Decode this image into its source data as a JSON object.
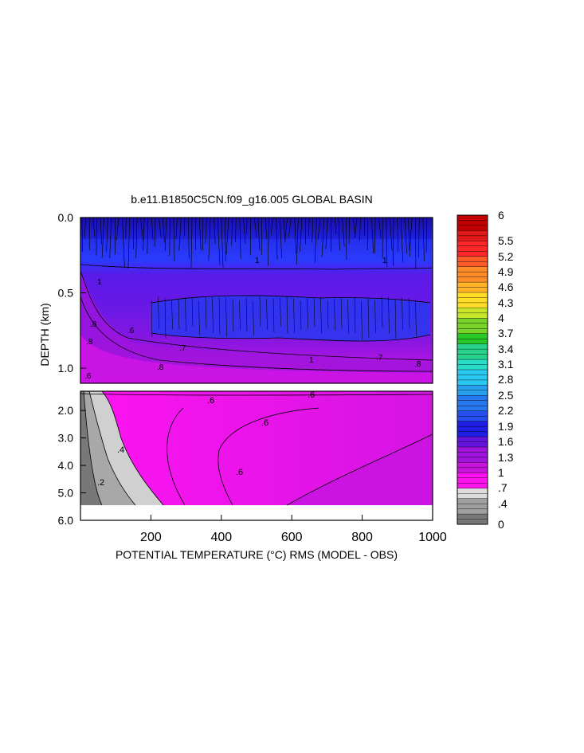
{
  "chart_data": {
    "type": "heatmap",
    "title": "b.e11.B1850C5CN.f09_g16.005 GLOBAL BASIN",
    "xlabel": "POTENTIAL TEMPERATURE (°C) RMS (MODEL - OBS)",
    "ylabel": "DEPTH (km)",
    "xlim": [
      0,
      1000
    ],
    "x_ticks": [
      "200",
      "400",
      "600",
      "800",
      "1000"
    ],
    "upper_panel": {
      "ylim": [
        0.0,
        1.1
      ],
      "y_ticks": [
        "0.0",
        "0.5",
        "1.0"
      ],
      "contour_labels": [
        "1",
        "1",
        "1",
        "1",
        ".8",
        ".8",
        ".8",
        ".6",
        ".6",
        ".7",
        ".7",
        ".8"
      ]
    },
    "lower_panel": {
      "ylim": [
        1.3,
        6.0
      ],
      "y_ticks": [
        "2.0",
        "3.0",
        "4.0",
        "5.0",
        "6.0"
      ],
      "contour_labels": [
        ".6",
        ".6",
        ".6",
        ".6",
        ".4",
        ".2"
      ]
    },
    "colorbar": {
      "labels": [
        "6",
        "5.5",
        "5.2",
        "4.9",
        "4.6",
        "4.3",
        "4",
        "3.7",
        "3.4",
        "3.1",
        "2.8",
        "2.5",
        "2.2",
        "1.9",
        "1.6",
        "1.3",
        "1",
        ".7",
        ".4",
        "0"
      ],
      "colors": [
        "#c00000",
        "#e01818",
        "#ff2828",
        "#ff5a28",
        "#ff8c28",
        "#ffb428",
        "#ffdc28",
        "#c8e628",
        "#78d228",
        "#28c828",
        "#28d28c",
        "#28dcc8",
        "#28c8f0",
        "#28a0f0",
        "#2878f0",
        "#2850f0",
        "#1e1ee6",
        "#6414dc",
        "#a014dc",
        "#c814dc",
        "#ff14f0",
        "#dcdcdc",
        "#a0a0a0",
        "#787878"
      ]
    }
  }
}
